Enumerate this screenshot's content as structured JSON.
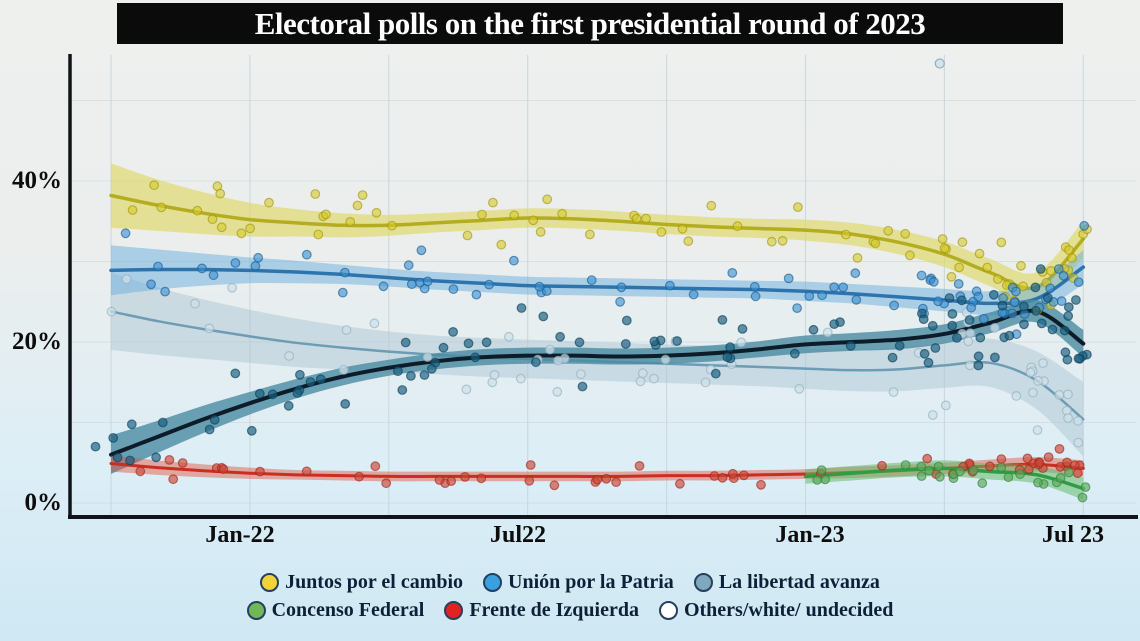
{
  "title": "Electoral polls on the first presidential round of 2023",
  "page_colors": {
    "title_bar_bg": "#0b0b0b",
    "title_text": "#ffffff",
    "background_top": "#eef0ee",
    "background_bottom": "#cfe8f4",
    "axis": "#101418",
    "gridline": "#c9d5da"
  },
  "chart_data": {
    "type": "scatter",
    "note": "poll scatter points with loess-smoothed trend lines and confidence bands",
    "x_months": [
      "Oct-21",
      "Nov-21",
      "Dec-21",
      "Jan-22",
      "Feb-22",
      "Mar-22",
      "Apr-22",
      "May-22",
      "Jun-22",
      "Jul-22",
      "Aug-22",
      "Sep-22",
      "Oct-22",
      "Nov-22",
      "Dec-22",
      "Jan-23",
      "Feb-23",
      "Mar-23",
      "Apr-23",
      "May-23",
      "Jun-23",
      "Jul-23"
    ],
    "x_ticks": [
      {
        "label": "Jan-22",
        "month_index": 3
      },
      {
        "label": "Jul22",
        "month_index": 9
      },
      {
        "label": "Jan-23",
        "month_index": 15
      },
      {
        "label": "Jul 23",
        "month_index": 21
      }
    ],
    "grid_month_indices": [
      0,
      3,
      6,
      9,
      12,
      15,
      18,
      21
    ],
    "y_ticks": [
      {
        "label": "40%",
        "value": 40
      },
      {
        "label": "20%",
        "value": 20
      },
      {
        "label": "0%",
        "value": 0
      }
    ],
    "y_grid_values": [
      0,
      10,
      20,
      30,
      40,
      50
    ],
    "ylim": [
      0,
      55.5
    ],
    "legend_position": "bottom",
    "series": [
      {
        "id": "others",
        "name": "Others/white/ undecided",
        "legend_color": "#ffffff",
        "line_color": "#6d9cb5",
        "line_width": 2.5,
        "band_color": "#adc6d4",
        "band_opacity": 0.5,
        "dot_color": "#cfe0e8",
        "dot_stroke": "#92b0bf",
        "dot_opacity": 0.7,
        "values": [
          23.8,
          22.6,
          21.6,
          20.7,
          19.9,
          19.3,
          18.8,
          18.4,
          18.1,
          17.9,
          17.7,
          17.5,
          17.3,
          17.1,
          16.9,
          16.7,
          16.5,
          16.6,
          17.1,
          17.4,
          15.2,
          10.4
        ],
        "band": [
          4.8,
          4.2,
          3.7,
          3.3,
          3.0,
          2.7,
          2.5,
          2.4,
          2.4,
          2.4,
          2.4,
          2.4,
          2.4,
          2.4,
          2.4,
          2.5,
          2.6,
          2.7,
          2.8,
          3.0,
          3.6,
          4.6
        ],
        "scatter": {
          "base_count": 42,
          "right_cluster_count": 16,
          "spread": 4.5,
          "domain": [
            -0.4,
            21.1
          ]
        }
      },
      {
        "id": "juntos",
        "name": "Juntos por el cambio",
        "legend_color": "#f2d337",
        "line_color": "#b3ad1f",
        "line_width": 3.5,
        "band_color": "#ddd75c",
        "band_opacity": 0.6,
        "dot_color": "#d6c92c",
        "dot_stroke": "#a3970f",
        "dot_opacity": 0.6,
        "values": [
          38.2,
          37.0,
          36.0,
          35.2,
          34.8,
          34.5,
          34.5,
          34.8,
          35.1,
          35.4,
          35.3,
          35.0,
          34.6,
          34.3,
          34.1,
          33.9,
          33.4,
          32.4,
          30.9,
          28.6,
          26.8,
          32.8
        ],
        "band": [
          4.0,
          3.2,
          2.6,
          2.1,
          1.7,
          1.5,
          1.3,
          1.2,
          1.2,
          1.2,
          1.2,
          1.2,
          1.2,
          1.2,
          1.2,
          1.3,
          1.4,
          1.5,
          1.6,
          1.7,
          1.9,
          2.3
        ],
        "scatter": {
          "base_count": 55,
          "right_cluster_count": 22,
          "spread": 3.6,
          "domain": [
            -0.4,
            21.1
          ]
        }
      },
      {
        "id": "union",
        "name": "Unión por la Patria",
        "legend_color": "#3ba0e0",
        "line_color": "#2d74ae",
        "line_width": 3.5,
        "band_color": "#6aaede",
        "band_opacity": 0.5,
        "dot_color": "#3e92d2",
        "dot_stroke": "#1b5d92",
        "dot_opacity": 0.62,
        "values": [
          28.9,
          29.0,
          29.0,
          28.9,
          28.7,
          28.4,
          28.0,
          27.6,
          27.3,
          27.0,
          26.9,
          26.8,
          26.7,
          26.6,
          26.5,
          26.3,
          26.0,
          25.6,
          25.2,
          24.8,
          25.4,
          29.3
        ],
        "band": [
          3.1,
          2.5,
          2.0,
          1.6,
          1.4,
          1.2,
          1.1,
          1.1,
          1.1,
          1.1,
          1.1,
          1.1,
          1.1,
          1.1,
          1.1,
          1.2,
          1.2,
          1.3,
          1.4,
          1.5,
          1.7,
          2.1
        ],
        "scatter": {
          "base_count": 55,
          "right_cluster_count": 22,
          "spread": 3.2,
          "domain": [
            -0.4,
            21.1
          ]
        }
      },
      {
        "id": "libertad",
        "name": "La libertad avanza",
        "legend_color": "#7fa8bf",
        "line_color": "#0d1c28",
        "line_width": 4,
        "band_color": "#4a8ba1",
        "band_opacity": 0.8,
        "dot_color": "#1c6080",
        "dot_stroke": "#0b415c",
        "dot_opacity": 0.68,
        "values": [
          6.0,
          8.2,
          10.4,
          12.4,
          14.2,
          15.7,
          16.8,
          17.6,
          18.1,
          18.3,
          18.3,
          18.2,
          18.3,
          18.6,
          19.1,
          19.7,
          20.0,
          20.3,
          21.0,
          22.4,
          23.8,
          19.8
        ],
        "band": [
          2.4,
          2.0,
          1.7,
          1.4,
          1.2,
          1.1,
          1.0,
          1.0,
          1.0,
          1.0,
          1.0,
          1.0,
          1.0,
          1.0,
          1.0,
          1.1,
          1.1,
          1.2,
          1.2,
          1.3,
          1.4,
          1.7
        ],
        "scatter": {
          "base_count": 65,
          "right_cluster_count": 30,
          "spread": 4.8,
          "domain": [
            -0.4,
            21.1
          ]
        }
      },
      {
        "id": "frente",
        "name": "Frente de Izquierda",
        "legend_color": "#e02222",
        "line_color": "#cc2d1f",
        "line_width": 3,
        "band_color": "#e2503c",
        "band_opacity": 0.45,
        "dot_color": "#cd4637",
        "dot_stroke": "#a22a1c",
        "dot_opacity": 0.65,
        "values": [
          4.9,
          4.4,
          4.0,
          3.7,
          3.5,
          3.4,
          3.3,
          3.3,
          3.3,
          3.3,
          3.3,
          3.3,
          3.4,
          3.4,
          3.5,
          3.6,
          3.8,
          4.0,
          4.3,
          4.6,
          4.8,
          4.3
        ],
        "band": [
          1.0,
          0.9,
          0.8,
          0.7,
          0.6,
          0.6,
          0.6,
          0.6,
          0.6,
          0.6,
          0.6,
          0.6,
          0.6,
          0.6,
          0.6,
          0.6,
          0.7,
          0.7,
          0.7,
          0.8,
          0.9,
          1.0
        ],
        "scatter": {
          "base_count": 45,
          "right_cluster_count": 14,
          "spread": 1.4,
          "domain": [
            -0.4,
            21.1
          ]
        }
      },
      {
        "id": "concenso",
        "name": "Concenso Federal",
        "legend_color": "#72b757",
        "line_color": "#2f9e43",
        "line_width": 3.5,
        "band_color": "#66bb6a",
        "band_opacity": 0.55,
        "dot_color": "#5cab5f",
        "dot_stroke": "#35823a",
        "dot_opacity": 0.68,
        "values": [
          null,
          null,
          null,
          null,
          null,
          null,
          null,
          null,
          null,
          null,
          null,
          null,
          null,
          null,
          null,
          3.3,
          3.7,
          4.1,
          4.3,
          3.9,
          3.5,
          1.8
        ],
        "band": [
          null,
          null,
          null,
          null,
          null,
          null,
          null,
          null,
          null,
          null,
          null,
          null,
          null,
          null,
          null,
          0.9,
          0.9,
          0.9,
          1.0,
          1.0,
          1.1,
          1.4
        ],
        "scatter": {
          "base_count": 10,
          "right_cluster_count": 14,
          "spread": 1.4,
          "domain": [
            15.2,
            21.1
          ]
        }
      }
    ],
    "outlier_point": {
      "series": "others",
      "month_index": 17.9,
      "value": 54.6
    }
  },
  "legend": {
    "rows": [
      [
        {
          "label": "Juntos por el cambio",
          "series_id": "juntos"
        },
        {
          "label": "Unión por la Patria",
          "series_id": "union"
        },
        {
          "label": "La libertad avanza",
          "series_id": "libertad"
        }
      ],
      [
        {
          "label": "Concenso Federal",
          "series_id": "concenso"
        },
        {
          "label": "Frente de Izquierda",
          "series_id": "frente"
        },
        {
          "label": "Others/white/ undecided",
          "series_id": "others"
        }
      ]
    ]
  }
}
